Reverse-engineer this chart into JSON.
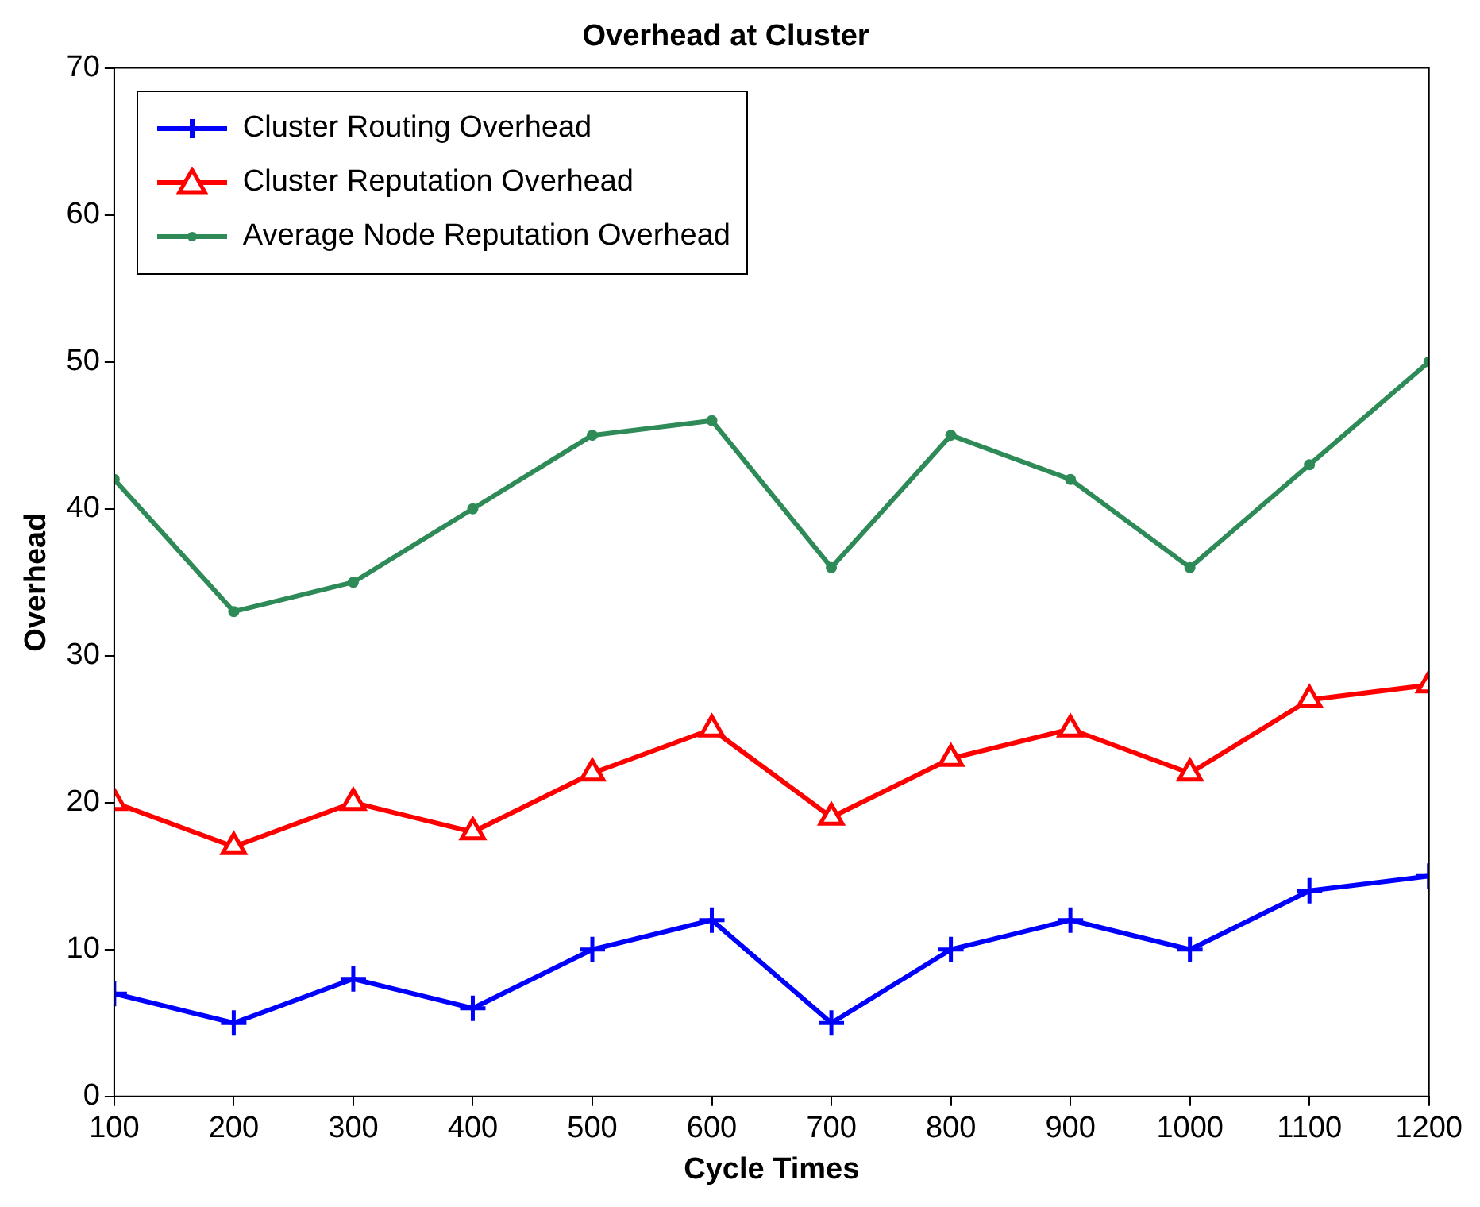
{
  "chart_data": {
    "type": "line",
    "title": "Overhead at Cluster",
    "xlabel": "Cycle Times",
    "ylabel": "Overhead",
    "x": [
      100,
      200,
      300,
      400,
      500,
      600,
      700,
      800,
      900,
      1000,
      1100,
      1200
    ],
    "series": [
      {
        "name": "Cluster Routing Overhead",
        "color": "#0000ff",
        "marker": "cross",
        "values": [
          7,
          5,
          8,
          6,
          10,
          12,
          5,
          10,
          12,
          10,
          14,
          15
        ]
      },
      {
        "name": "Cluster Reputation Overhead",
        "color": "#ff0000",
        "marker": "triangle",
        "values": [
          20,
          17,
          20,
          18,
          22,
          25,
          19,
          23,
          25,
          22,
          27,
          28
        ]
      },
      {
        "name": "Average Node Reputation Overhead",
        "color": "#2e8b57",
        "marker": "circle",
        "values": [
          42,
          33,
          35,
          40,
          45,
          46,
          36,
          45,
          42,
          36,
          43,
          50
        ]
      }
    ],
    "xlim": [
      100,
      1200
    ],
    "xticks": [
      100,
      200,
      300,
      400,
      500,
      600,
      700,
      800,
      900,
      1000,
      1100,
      1200
    ],
    "ylim": [
      0,
      70
    ],
    "yticks": [
      0,
      10,
      20,
      30,
      40,
      50,
      60,
      70
    ],
    "grid": false,
    "legend": "top left",
    "line_style": "solid"
  }
}
